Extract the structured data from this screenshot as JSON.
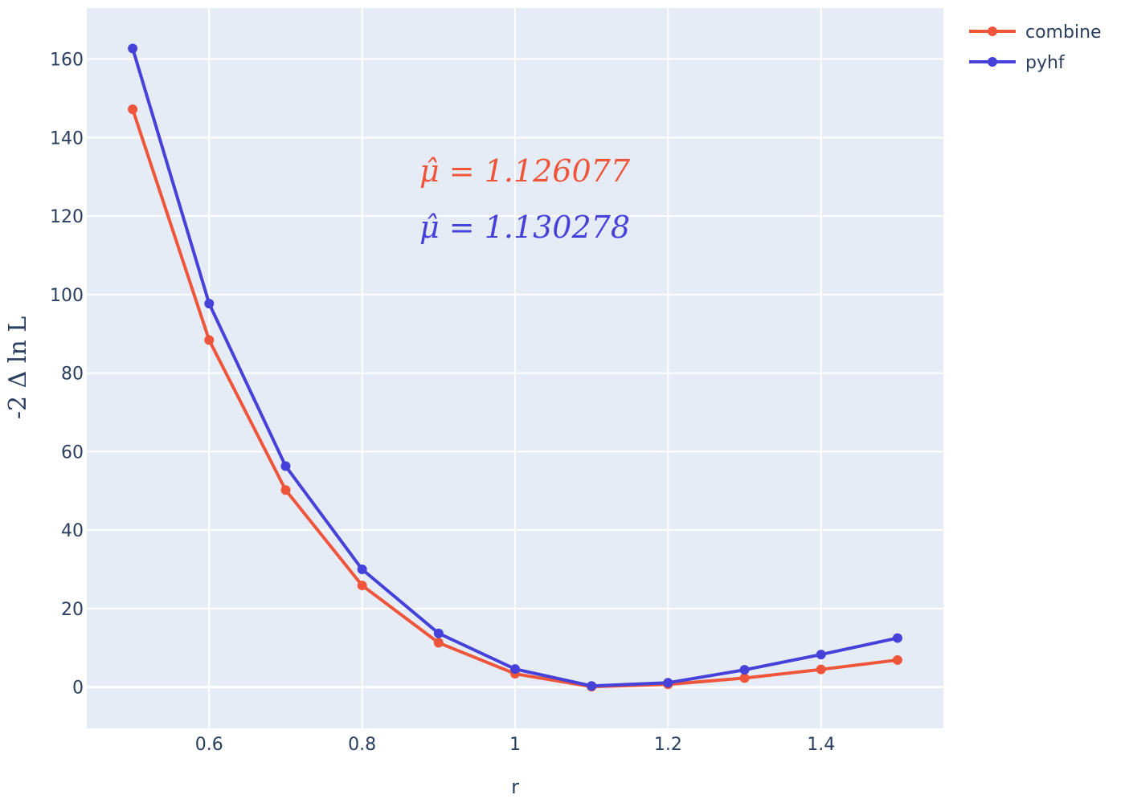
{
  "chart_data": {
    "type": "line",
    "xlabel": "r",
    "ylabel": "-2 Δ ln L",
    "xlim": [
      0.44,
      1.56
    ],
    "ylim": [
      -10.5,
      173
    ],
    "xticks": [
      0.6,
      0.8,
      1,
      1.2,
      1.4
    ],
    "xtick_labels": [
      "0.6",
      "0.8",
      "1",
      "1.2",
      "1.4"
    ],
    "yticks": [
      0,
      20,
      40,
      60,
      80,
      100,
      120,
      140,
      160
    ],
    "ytick_labels": [
      "0",
      "20",
      "40",
      "60",
      "80",
      "100",
      "120",
      "140",
      "160"
    ],
    "grid": true,
    "legend_position": "top-right",
    "x": [
      0.5,
      0.6,
      0.7,
      0.8,
      0.9,
      1.0,
      1.1,
      1.2,
      1.3,
      1.4,
      1.5
    ],
    "series": [
      {
        "name": "combine",
        "color": "#ef553b",
        "values": [
          147.2,
          88.4,
          50.2,
          25.9,
          11.3,
          3.4,
          0.1,
          0.7,
          2.3,
          4.5,
          6.9
        ]
      },
      {
        "name": "pyhf",
        "color": "#4541d9",
        "values": [
          162.7,
          97.7,
          56.3,
          30.0,
          13.7,
          4.6,
          0.3,
          1.1,
          4.4,
          8.3,
          12.5
        ]
      }
    ],
    "annotations": [
      {
        "text": "μ̂ = 1.126077",
        "color": "#ef553b"
      },
      {
        "text": "μ̂ = 1.130278",
        "color": "#4541d9"
      }
    ]
  },
  "colors": {
    "plot_bg": "#e5ecf6",
    "grid": "#ffffff",
    "text": "#2a3f5f"
  }
}
